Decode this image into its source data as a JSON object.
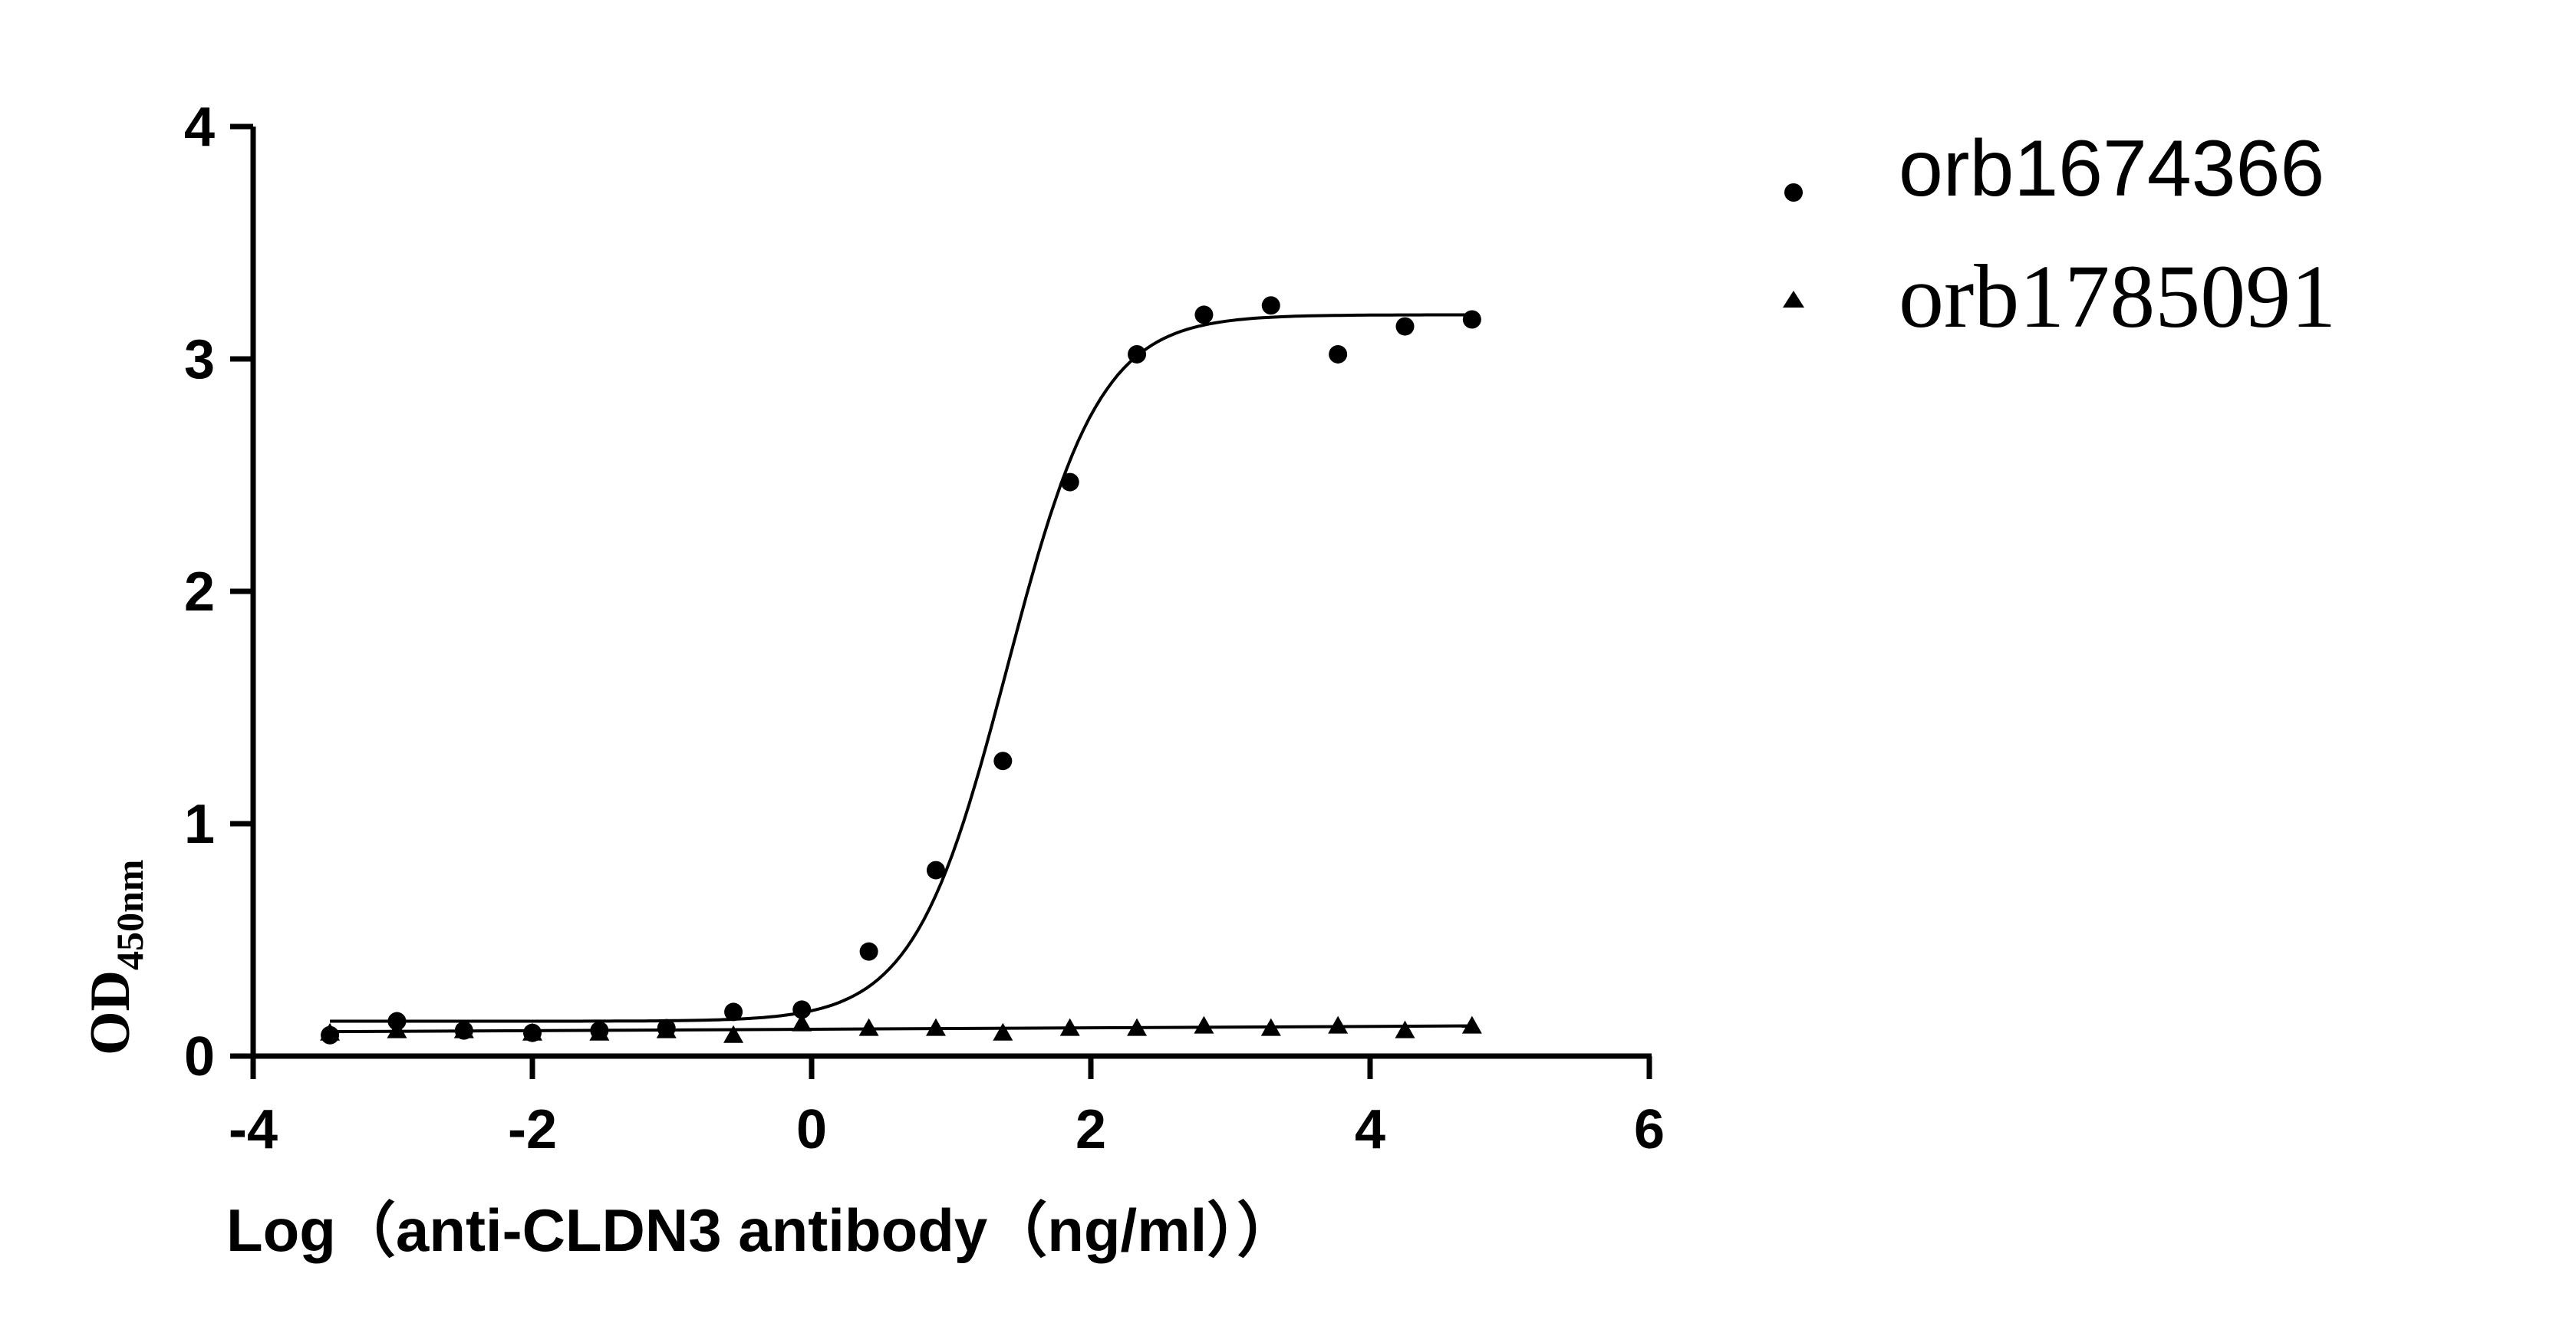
{
  "chart_data": {
    "type": "scatter",
    "xlabel": "Log（anti-CLDN3 antibody（ng/ml））",
    "ylabel": "OD",
    "ylabel_subscript": "450nm",
    "xlim": [
      -4,
      6
    ],
    "ylim": [
      0,
      4
    ],
    "x_ticks": [
      "-4",
      "-2",
      "0",
      "2",
      "4",
      "6"
    ],
    "y_ticks": [
      "0",
      "1",
      "2",
      "3",
      "4"
    ],
    "legend_position": "top-right",
    "grid": false,
    "series": [
      {
        "name": "orb1674366",
        "marker": "circle",
        "color": "#000000",
        "x": [
          -3.45,
          -2.97,
          -2.49,
          -2.0,
          -1.52,
          -1.04,
          -0.56,
          -0.07,
          0.41,
          0.89,
          1.37,
          1.85,
          2.33,
          2.81,
          3.29,
          3.77,
          4.25,
          4.73
        ],
        "y": [
          0.09,
          0.15,
          0.11,
          0.1,
          0.11,
          0.12,
          0.19,
          0.2,
          0.45,
          0.8,
          1.27,
          2.47,
          3.02,
          3.19,
          3.23,
          3.02,
          3.14,
          3.17
        ],
        "fit_curve": {
          "type": "sigmoid",
          "bottom": 0.15,
          "top": 3.19,
          "log_ec50": 1.4,
          "hill_slope": 1.3
        }
      },
      {
        "name": "orb1785091",
        "marker": "triangle",
        "color": "#000000",
        "x": [
          -3.45,
          -2.97,
          -2.49,
          -2.0,
          -1.52,
          -1.04,
          -0.56,
          -0.07,
          0.41,
          0.89,
          1.37,
          1.85,
          2.33,
          2.81,
          3.29,
          3.77,
          4.25,
          4.73
        ],
        "y": [
          0.1,
          0.11,
          0.11,
          0.1,
          0.1,
          0.11,
          0.09,
          0.14,
          0.12,
          0.12,
          0.1,
          0.12,
          0.12,
          0.13,
          0.12,
          0.13,
          0.11,
          0.13
        ],
        "fit_curve": {
          "type": "linear",
          "y_start": 0.105,
          "y_end": 0.13
        }
      }
    ]
  }
}
